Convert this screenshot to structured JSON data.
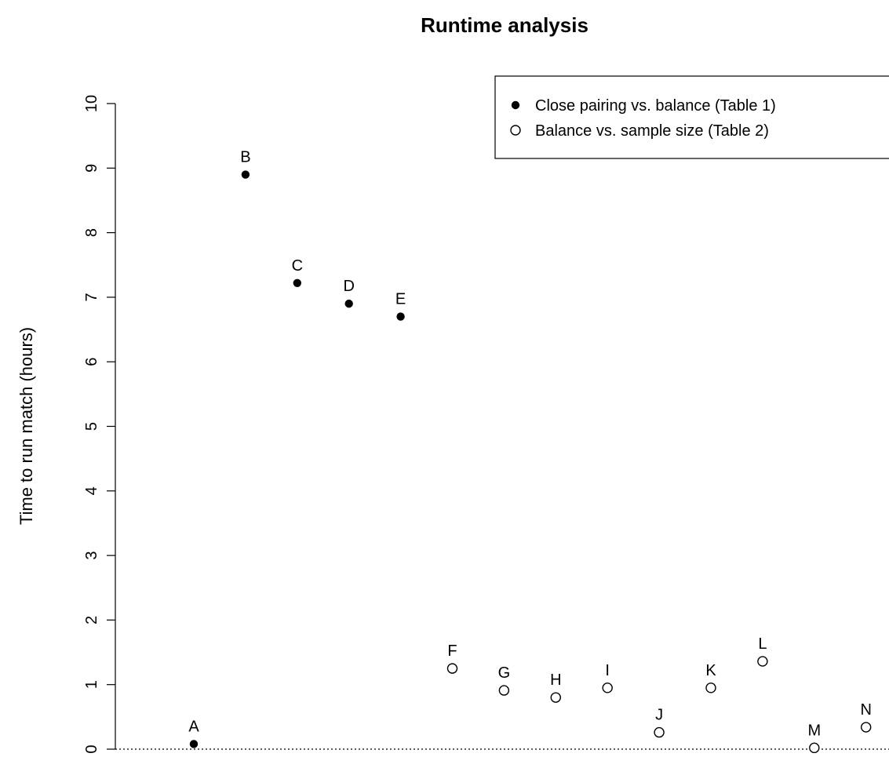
{
  "chart_data": {
    "type": "scatter",
    "title": "Runtime analysis",
    "xlabel": "",
    "ylabel": "Time to run match (hours)",
    "ylim": [
      0,
      10
    ],
    "yticks": [
      "0",
      "1",
      "2",
      "3",
      "4",
      "5",
      "6",
      "7",
      "8",
      "9",
      "10"
    ],
    "grid": false,
    "reference_line": {
      "y": 0,
      "style": "dotted"
    },
    "legend": {
      "placement": "top-right",
      "entries": [
        {
          "label": "Close pairing vs. balance (Table 1)",
          "marker": "filled"
        },
        {
          "label": "Balance vs. sample size (Table 2)",
          "marker": "open"
        }
      ]
    },
    "series": [
      {
        "name": "Close pairing vs. balance (Table 1)",
        "marker": "filled",
        "points": [
          {
            "label": "A",
            "x": 1,
            "y": 0.08
          },
          {
            "label": "B",
            "x": 2,
            "y": 8.9
          },
          {
            "label": "C",
            "x": 3,
            "y": 7.22
          },
          {
            "label": "D",
            "x": 4,
            "y": 6.9
          },
          {
            "label": "E",
            "x": 5,
            "y": 6.7
          }
        ]
      },
      {
        "name": "Balance vs. sample size (Table 2)",
        "marker": "open",
        "points": [
          {
            "label": "F",
            "x": 6,
            "y": 1.25
          },
          {
            "label": "G",
            "x": 7,
            "y": 0.91
          },
          {
            "label": "H",
            "x": 8,
            "y": 0.8
          },
          {
            "label": "I",
            "x": 9,
            "y": 0.95
          },
          {
            "label": "J",
            "x": 10,
            "y": 0.26
          },
          {
            "label": "K",
            "x": 11,
            "y": 0.95
          },
          {
            "label": "L",
            "x": 12,
            "y": 1.36
          },
          {
            "label": "M",
            "x": 13,
            "y": 0.02
          },
          {
            "label": "N",
            "x": 14,
            "y": 0.34
          }
        ]
      }
    ]
  }
}
